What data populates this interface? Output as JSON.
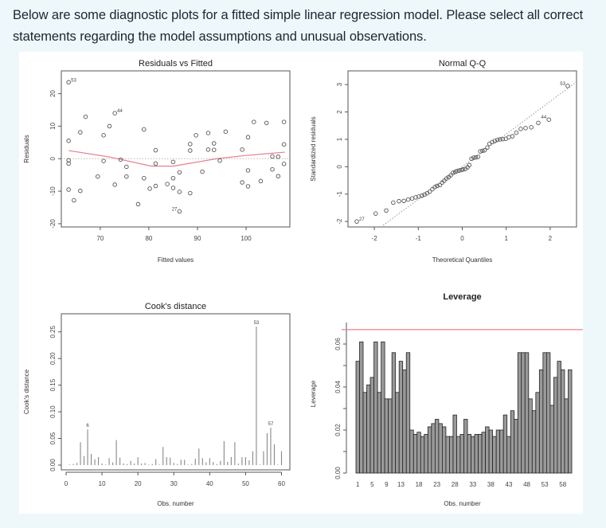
{
  "question": {
    "text": "Below are some diagnostic plots for a fitted simple linear regression model. Please select all correct statements regarding the model assumptions and unusual observations."
  },
  "colors": {
    "page_background": "#eef8fb",
    "panel_background": "#ffffff",
    "smoother_red": "#e87f8f",
    "points": "#555555",
    "bar_fill": "#9a9a9a"
  },
  "chart_data": [
    {
      "id": "residuals_vs_fitted",
      "type": "scatter",
      "title": "Residuals vs Fitted",
      "xlabel": "Fitted values",
      "ylabel": "Residuals",
      "xlim": [
        62,
        109
      ],
      "ylim": [
        -21,
        27
      ],
      "xticks": [
        70,
        80,
        90,
        100
      ],
      "yticks": [
        -20,
        -10,
        0,
        10,
        20
      ],
      "grid": false,
      "reference_line": {
        "y": 0,
        "style": "dotted"
      },
      "smoother": {
        "color": "#e87f8f",
        "points": [
          [
            63.5,
            2.5
          ],
          [
            72,
            0.5
          ],
          [
            80.5,
            -2.3
          ],
          [
            85,
            -2.3
          ],
          [
            94,
            0
          ],
          [
            100,
            1.0
          ],
          [
            104,
            1.5
          ],
          [
            108,
            2.0
          ]
        ]
      },
      "labeled_points": [
        {
          "label": "53",
          "x": 63.5,
          "y": 23.5
        },
        {
          "label": "44",
          "x": 73,
          "y": 14
        },
        {
          "label": "27",
          "x": 86.3,
          "y": -16.2
        }
      ],
      "points": [
        [
          63.5,
          23.5
        ],
        [
          63.5,
          5.5
        ],
        [
          63.5,
          -0.5
        ],
        [
          63.5,
          -1.5
        ],
        [
          63.5,
          -9.5
        ],
        [
          64.6,
          -12.8
        ],
        [
          65.9,
          8.1
        ],
        [
          65.9,
          -9.9
        ],
        [
          67,
          12.9
        ],
        [
          69.5,
          -5.5
        ],
        [
          70.7,
          7.2
        ],
        [
          70.7,
          -0.7
        ],
        [
          71.9,
          10
        ],
        [
          73,
          14
        ],
        [
          73,
          -8
        ],
        [
          74.2,
          -0.3
        ],
        [
          75.4,
          -2.5
        ],
        [
          75.4,
          -5.5
        ],
        [
          77.8,
          -14
        ],
        [
          79,
          9
        ],
        [
          79,
          -6
        ],
        [
          80.2,
          -9.2
        ],
        [
          81.4,
          2.6
        ],
        [
          81.4,
          -1.5
        ],
        [
          81.4,
          -8.4
        ],
        [
          83.8,
          -7.8
        ],
        [
          85,
          -1
        ],
        [
          85,
          -6
        ],
        [
          85,
          -9
        ],
        [
          86.3,
          -4.2
        ],
        [
          86.3,
          -10.2
        ],
        [
          86.3,
          -16.2
        ],
        [
          88.5,
          4.5
        ],
        [
          88.5,
          2.5
        ],
        [
          88.5,
          -10.6
        ],
        [
          89.7,
          7.2
        ],
        [
          91,
          -4
        ],
        [
          92.2,
          7.9
        ],
        [
          92.2,
          2.8
        ],
        [
          93.4,
          4.7
        ],
        [
          93.4,
          2.7
        ],
        [
          94.6,
          -0.6
        ],
        [
          95.8,
          8.3
        ],
        [
          99.2,
          2.8
        ],
        [
          99.2,
          -7.3
        ],
        [
          100.4,
          6.6
        ],
        [
          100.4,
          -3.6
        ],
        [
          100.4,
          -8.5
        ],
        [
          101.6,
          11.3
        ],
        [
          103,
          -6.9
        ],
        [
          104.2,
          11
        ],
        [
          105.4,
          0.7
        ],
        [
          105.4,
          -3.3
        ],
        [
          106.6,
          0.6
        ],
        [
          106.6,
          -5.4
        ],
        [
          107.8,
          11.3
        ],
        [
          107.8,
          4.4
        ],
        [
          107.8,
          -1.6
        ]
      ]
    },
    {
      "id": "normal_qq",
      "type": "scatter",
      "title": "Normal Q-Q",
      "xlabel": "Theoretical Quantiles",
      "ylabel": "Standardized residuals",
      "xlim": [
        -2.6,
        2.6
      ],
      "ylim": [
        -2.2,
        3.5
      ],
      "xticks": [
        -2,
        -1,
        0,
        1,
        2
      ],
      "yticks": [
        -2,
        -1,
        0,
        1,
        2,
        3
      ],
      "reference_line": {
        "style": "dotted",
        "from": [
          -1.85,
          -2.2
        ],
        "to": [
          2.6,
          3.1
        ]
      },
      "labeled_points": [
        {
          "label": "27",
          "x": -2.4,
          "y": -2.0
        },
        {
          "label": "44",
          "x": 1.97,
          "y": 1.72
        },
        {
          "label": "53",
          "x": 2.4,
          "y": 2.95
        }
      ],
      "points": [
        [
          -2.4,
          -2.0
        ],
        [
          -1.97,
          -1.71
        ],
        [
          -1.73,
          -1.6
        ],
        [
          -1.57,
          -1.31
        ],
        [
          -1.44,
          -1.26
        ],
        [
          -1.33,
          -1.25
        ],
        [
          -1.23,
          -1.2
        ],
        [
          -1.14,
          -1.16
        ],
        [
          -1.06,
          -1.12
        ],
        [
          -0.99,
          -1.09
        ],
        [
          -0.92,
          -1.06
        ],
        [
          -0.86,
          -1.02
        ],
        [
          -0.8,
          -0.97
        ],
        [
          -0.74,
          -0.91
        ],
        [
          -0.68,
          -0.82
        ],
        [
          -0.62,
          -0.74
        ],
        [
          -0.57,
          -0.7
        ],
        [
          -0.51,
          -0.67
        ],
        [
          -0.46,
          -0.58
        ],
        [
          -0.41,
          -0.51
        ],
        [
          -0.36,
          -0.43
        ],
        [
          -0.31,
          -0.38
        ],
        [
          -0.26,
          -0.31
        ],
        [
          -0.21,
          -0.22
        ],
        [
          -0.16,
          -0.19
        ],
        [
          -0.12,
          -0.16
        ],
        [
          -0.07,
          -0.14
        ],
        [
          -0.02,
          -0.12
        ],
        [
          0.02,
          -0.1
        ],
        [
          0.07,
          -0.08
        ],
        [
          0.12,
          -0.02
        ],
        [
          0.16,
          0.06
        ],
        [
          0.21,
          0.29
        ],
        [
          0.26,
          0.33
        ],
        [
          0.31,
          0.34
        ],
        [
          0.36,
          0.36
        ],
        [
          0.41,
          0.56
        ],
        [
          0.46,
          0.58
        ],
        [
          0.51,
          0.6
        ],
        [
          0.57,
          0.7
        ],
        [
          0.62,
          0.84
        ],
        [
          0.68,
          0.9
        ],
        [
          0.74,
          0.94
        ],
        [
          0.8,
          0.98
        ],
        [
          0.86,
          1.0
        ],
        [
          0.92,
          1.01
        ],
        [
          0.99,
          1.02
        ],
        [
          1.06,
          1.08
        ],
        [
          1.14,
          1.11
        ],
        [
          1.23,
          1.24
        ],
        [
          1.33,
          1.38
        ],
        [
          1.44,
          1.41
        ],
        [
          1.57,
          1.44
        ],
        [
          1.73,
          1.6
        ],
        [
          1.97,
          1.72
        ],
        [
          2.4,
          2.95
        ]
      ]
    },
    {
      "id": "cooks_distance",
      "type": "bar",
      "title": "Cook's distance",
      "xlabel": "Obs. number",
      "ylabel": "Cook's distance",
      "xlim": [
        0,
        61
      ],
      "ylim": [
        0,
        0.275
      ],
      "xticks": [
        0,
        10,
        20,
        30,
        40,
        50,
        60
      ],
      "yticks": [
        "0.00",
        "0.05",
        "0.10",
        "0.15",
        "0.20",
        "0.25"
      ],
      "labeled_points": [
        {
          "label": "6",
          "x": 6,
          "y": 0.067
        },
        {
          "label": "53",
          "x": 53,
          "y": 0.26
        },
        {
          "label": "57",
          "x": 57,
          "y": 0.07
        }
      ],
      "categories": [
        1,
        2,
        3,
        4,
        5,
        6,
        7,
        8,
        9,
        10,
        11,
        12,
        13,
        14,
        15,
        16,
        17,
        18,
        19,
        20,
        21,
        22,
        23,
        24,
        25,
        26,
        27,
        28,
        29,
        30,
        31,
        32,
        33,
        34,
        35,
        36,
        37,
        38,
        39,
        40,
        41,
        42,
        43,
        44,
        45,
        46,
        47,
        48,
        49,
        50,
        51,
        52,
        53,
        54,
        55,
        56,
        57,
        58,
        59,
        60
      ],
      "values": [
        0.001,
        0.002,
        0.004,
        0.043,
        0.017,
        0.067,
        0.021,
        0.011,
        0.015,
        0.003,
        0.001,
        0.013,
        0.005,
        0.047,
        0.014,
        0.003,
        0.002,
        0.008,
        0.003,
        0.015,
        0.003,
        0.004,
        0.001,
        0.002,
        0.011,
        0.001,
        0.034,
        0.015,
        0.014,
        0.004,
        0.002,
        0.01,
        0.01,
        0.001,
        0.002,
        0.012,
        0.031,
        0.013,
        0.005,
        0.013,
        0.006,
        0.002,
        0.008,
        0.045,
        0.006,
        0.015,
        0.043,
        0.003,
        0.015,
        0.015,
        0.009,
        0.026,
        0.26,
        0.001,
        0.026,
        0.06,
        0.07,
        0.039,
        0.001,
        0.026
      ]
    },
    {
      "id": "leverage",
      "type": "bar",
      "title": "Leverage",
      "xlabel": "Obs. number",
      "ylabel": "Leverage",
      "ylim": [
        0,
        0.07
      ],
      "yticks": [
        "0.00",
        "0.02",
        "0.04",
        "0.06"
      ],
      "xtick_labels": [
        "1",
        "5",
        "9",
        "13",
        "18",
        "23",
        "28",
        "33",
        "38",
        "43",
        "48",
        "53",
        "58"
      ],
      "threshold_line": {
        "y": 0.0667,
        "color": "#e87f8f"
      },
      "categories": [
        1,
        2,
        3,
        4,
        5,
        6,
        7,
        8,
        9,
        10,
        11,
        12,
        13,
        14,
        15,
        16,
        17,
        18,
        19,
        20,
        21,
        22,
        23,
        24,
        25,
        26,
        27,
        28,
        29,
        30,
        31,
        32,
        33,
        34,
        35,
        36,
        37,
        38,
        39,
        40,
        41,
        42,
        43,
        44,
        45,
        46,
        47,
        48,
        49,
        50,
        51,
        52,
        53,
        54,
        55,
        56,
        57,
        58,
        59,
        60
      ],
      "values": [
        0.052,
        0.061,
        0.0375,
        0.041,
        0.0445,
        0.061,
        0.0375,
        0.061,
        0.0345,
        0.0345,
        0.056,
        0.0375,
        0.052,
        0.048,
        0.056,
        0.02,
        0.018,
        0.019,
        0.017,
        0.018,
        0.0215,
        0.023,
        0.025,
        0.023,
        0.0215,
        0.017,
        0.017,
        0.027,
        0.017,
        0.018,
        0.025,
        0.018,
        0.017,
        0.018,
        0.018,
        0.019,
        0.0215,
        0.02,
        0.017,
        0.02,
        0.02,
        0.027,
        0.017,
        0.029,
        0.025,
        0.056,
        0.056,
        0.056,
        0.0345,
        0.029,
        0.0375,
        0.048,
        0.056,
        0.056,
        0.0315,
        0.0445,
        0.052,
        0.048,
        0.0345,
        0.048
      ]
    }
  ]
}
